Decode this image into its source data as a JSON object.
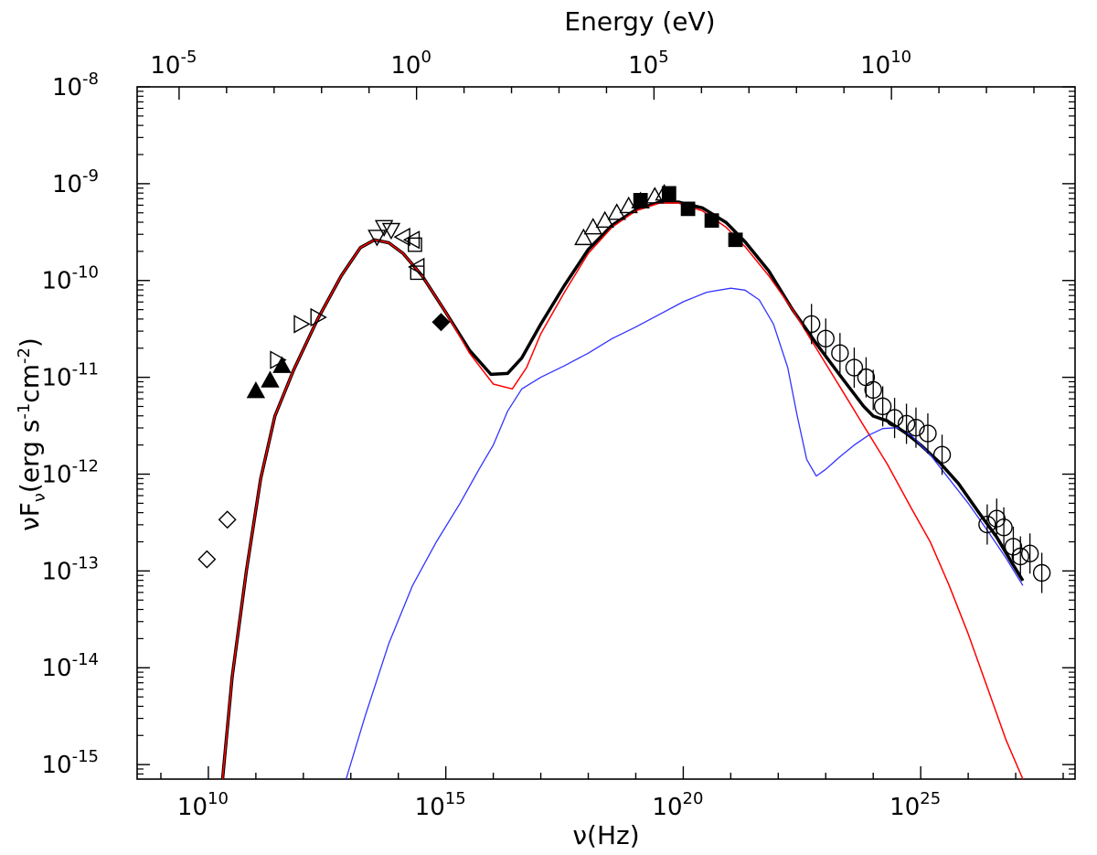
{
  "chart_data": {
    "type": "scatter",
    "xlabel": "ν(Hz)",
    "ylabel": "νF_ν(erg s^-1 cm^-2)",
    "top_xlabel": "Energy (eV)",
    "x_scale": "log",
    "y_scale": "log",
    "xlim_log10": [
      8.5,
      28.25
    ],
    "ylim_log10": [
      -15.15,
      -8
    ],
    "x_ticks": [
      {
        "base": "10",
        "exp": "10",
        "log10": 10
      },
      {
        "base": "10",
        "exp": "15",
        "log10": 15
      },
      {
        "base": "10",
        "exp": "20",
        "log10": 20
      },
      {
        "base": "10",
        "exp": "25",
        "log10": 25
      }
    ],
    "top_ticks": [
      {
        "base": "10",
        "exp": "-5",
        "log10_eV": -5
      },
      {
        "base": "10",
        "exp": "0",
        "log10_eV": 0
      },
      {
        "base": "10",
        "exp": "5",
        "log10_eV": 5
      },
      {
        "base": "10",
        "exp": "10",
        "log10_eV": 10
      }
    ],
    "y_ticks": [
      {
        "base": "10",
        "exp": "-8",
        "log10": -8
      },
      {
        "base": "10",
        "exp": "-9",
        "log10": -9
      },
      {
        "base": "10",
        "exp": "-10",
        "log10": -10
      },
      {
        "base": "10",
        "exp": "-11",
        "log10": -11
      },
      {
        "base": "10",
        "exp": "-12",
        "log10": -12
      },
      {
        "base": "10",
        "exp": "-13",
        "log10": -13
      },
      {
        "base": "10",
        "exp": "-14",
        "log10": -14
      },
      {
        "base": "10",
        "exp": "-15",
        "log10": -15
      }
    ],
    "grid": false,
    "series": [
      {
        "marker": "diamond-open",
        "points": [
          [
            9.97,
            -12.88
          ],
          [
            10.4,
            -12.47
          ]
        ]
      },
      {
        "marker": "triangle-up-filled",
        "points": [
          [
            11.0,
            -11.14
          ],
          [
            11.3,
            -11.03
          ],
          [
            11.55,
            -10.88
          ]
        ]
      },
      {
        "marker": "triangle-right-open",
        "points": [
          [
            11.45,
            -10.82
          ],
          [
            11.95,
            -10.45
          ],
          [
            12.3,
            -10.38
          ]
        ]
      },
      {
        "marker": "triangle-down-open",
        "points": [
          [
            13.55,
            -9.55
          ],
          [
            13.7,
            -9.45
          ],
          [
            13.85,
            -9.48
          ]
        ]
      },
      {
        "marker": "triangle-left-open",
        "points": [
          [
            14.1,
            -9.55
          ],
          [
            14.3,
            -9.58
          ],
          [
            14.4,
            -9.86
          ]
        ]
      },
      {
        "marker": "square-open",
        "points": [
          [
            14.35,
            -9.63
          ],
          [
            14.4,
            -9.92
          ]
        ]
      },
      {
        "marker": "diamond-filled",
        "points": [
          [
            14.9,
            -10.43
          ]
        ]
      },
      {
        "marker": "triangle-up-open",
        "points": [
          [
            17.9,
            -9.56
          ],
          [
            18.1,
            -9.45
          ],
          [
            18.35,
            -9.38
          ],
          [
            18.6,
            -9.3
          ],
          [
            18.85,
            -9.23
          ],
          [
            19.1,
            -9.18
          ],
          [
            19.4,
            -9.13
          ],
          [
            19.6,
            -9.1
          ]
        ]
      },
      {
        "marker": "square-filled",
        "points": [
          [
            19.1,
            -9.17
          ],
          [
            19.7,
            -9.1
          ],
          [
            20.1,
            -9.26
          ],
          [
            20.6,
            -9.38
          ],
          [
            21.1,
            -9.58
          ]
        ]
      },
      {
        "marker": "circle-open",
        "points": [
          [
            22.7,
            -10.45
          ],
          [
            23.0,
            -10.6
          ],
          [
            23.3,
            -10.75
          ],
          [
            23.6,
            -10.9
          ],
          [
            23.85,
            -11.0
          ],
          [
            24.0,
            -11.13
          ],
          [
            24.2,
            -11.3
          ],
          [
            24.45,
            -11.42
          ],
          [
            24.7,
            -11.48
          ],
          [
            24.9,
            -11.52
          ],
          [
            25.15,
            -11.58
          ],
          [
            25.45,
            -11.8
          ],
          [
            26.4,
            -12.52
          ],
          [
            26.6,
            -12.46
          ],
          [
            26.75,
            -12.55
          ],
          [
            26.95,
            -12.75
          ],
          [
            27.1,
            -12.85
          ],
          [
            27.3,
            -12.82
          ],
          [
            27.55,
            -13.02
          ]
        ]
      }
    ],
    "curves": [
      {
        "color": "#000000",
        "width": 3.5,
        "points": [
          [
            10.3,
            -15.15
          ],
          [
            10.5,
            -14.1
          ],
          [
            10.8,
            -13.0
          ],
          [
            11.1,
            -12.05
          ],
          [
            11.4,
            -11.4
          ],
          [
            11.8,
            -10.92
          ],
          [
            12.3,
            -10.4
          ],
          [
            12.8,
            -9.95
          ],
          [
            13.2,
            -9.66
          ],
          [
            13.5,
            -9.58
          ],
          [
            13.8,
            -9.61
          ],
          [
            14.1,
            -9.72
          ],
          [
            14.5,
            -9.95
          ],
          [
            15.0,
            -10.33
          ],
          [
            15.5,
            -10.72
          ],
          [
            15.95,
            -10.97
          ],
          [
            16.3,
            -10.96
          ],
          [
            16.6,
            -10.8
          ],
          [
            17.0,
            -10.45
          ],
          [
            17.5,
            -10.05
          ],
          [
            18.0,
            -9.68
          ],
          [
            18.5,
            -9.43
          ],
          [
            19.0,
            -9.27
          ],
          [
            19.5,
            -9.19
          ],
          [
            19.9,
            -9.19
          ],
          [
            20.4,
            -9.25
          ],
          [
            20.9,
            -9.4
          ],
          [
            21.3,
            -9.6
          ],
          [
            21.8,
            -9.9
          ],
          [
            22.3,
            -10.3
          ],
          [
            22.8,
            -10.65
          ],
          [
            23.3,
            -10.98
          ],
          [
            23.8,
            -11.3
          ],
          [
            24.0,
            -11.4
          ],
          [
            24.3,
            -11.45
          ],
          [
            24.7,
            -11.58
          ],
          [
            25.0,
            -11.7
          ],
          [
            25.4,
            -11.88
          ],
          [
            25.8,
            -12.1
          ],
          [
            26.2,
            -12.38
          ],
          [
            26.6,
            -12.65
          ],
          [
            26.9,
            -12.9
          ],
          [
            27.15,
            -13.1
          ]
        ]
      },
      {
        "color": "#ff0000",
        "width": 1.5,
        "points": [
          [
            10.3,
            -15.15
          ],
          [
            10.5,
            -14.1
          ],
          [
            10.8,
            -13.0
          ],
          [
            11.1,
            -12.05
          ],
          [
            11.4,
            -11.4
          ],
          [
            11.8,
            -10.92
          ],
          [
            12.3,
            -10.4
          ],
          [
            12.8,
            -9.95
          ],
          [
            13.2,
            -9.66
          ],
          [
            13.5,
            -9.58
          ],
          [
            13.8,
            -9.61
          ],
          [
            14.1,
            -9.72
          ],
          [
            14.5,
            -9.95
          ],
          [
            15.0,
            -10.33
          ],
          [
            15.5,
            -10.75
          ],
          [
            16.0,
            -11.07
          ],
          [
            16.4,
            -11.12
          ],
          [
            16.7,
            -10.9
          ],
          [
            17.0,
            -10.55
          ],
          [
            17.5,
            -10.12
          ],
          [
            18.0,
            -9.72
          ],
          [
            18.5,
            -9.45
          ],
          [
            19.0,
            -9.28
          ],
          [
            19.5,
            -9.2
          ],
          [
            19.9,
            -9.2
          ],
          [
            20.4,
            -9.28
          ],
          [
            20.9,
            -9.45
          ],
          [
            21.3,
            -9.65
          ],
          [
            21.8,
            -9.95
          ],
          [
            22.3,
            -10.3
          ],
          [
            22.8,
            -10.7
          ],
          [
            23.3,
            -11.1
          ],
          [
            23.8,
            -11.5
          ],
          [
            24.3,
            -11.9
          ],
          [
            24.8,
            -12.35
          ],
          [
            25.2,
            -12.7
          ],
          [
            25.6,
            -13.15
          ],
          [
            26.0,
            -13.65
          ],
          [
            26.4,
            -14.2
          ],
          [
            26.8,
            -14.75
          ],
          [
            27.15,
            -15.15
          ]
        ]
      },
      {
        "color": "#3333ff",
        "width": 1.3,
        "points": [
          [
            12.9,
            -15.15
          ],
          [
            13.3,
            -14.5
          ],
          [
            13.8,
            -13.75
          ],
          [
            14.3,
            -13.15
          ],
          [
            14.8,
            -12.7
          ],
          [
            15.3,
            -12.3
          ],
          [
            15.7,
            -11.95
          ],
          [
            16.0,
            -11.7
          ],
          [
            16.3,
            -11.35
          ],
          [
            16.6,
            -11.12
          ],
          [
            17.0,
            -11.0
          ],
          [
            17.5,
            -10.88
          ],
          [
            18.0,
            -10.75
          ],
          [
            18.5,
            -10.6
          ],
          [
            19.0,
            -10.48
          ],
          [
            19.5,
            -10.35
          ],
          [
            20.0,
            -10.22
          ],
          [
            20.5,
            -10.12
          ],
          [
            21.0,
            -10.08
          ],
          [
            21.3,
            -10.1
          ],
          [
            21.6,
            -10.2
          ],
          [
            21.9,
            -10.45
          ],
          [
            22.2,
            -10.9
          ],
          [
            22.4,
            -11.4
          ],
          [
            22.6,
            -11.85
          ],
          [
            22.8,
            -12.02
          ],
          [
            23.0,
            -11.95
          ],
          [
            23.3,
            -11.82
          ],
          [
            23.6,
            -11.7
          ],
          [
            23.9,
            -11.6
          ],
          [
            24.2,
            -11.53
          ],
          [
            24.5,
            -11.52
          ],
          [
            24.8,
            -11.6
          ],
          [
            25.2,
            -11.8
          ],
          [
            25.6,
            -12.05
          ],
          [
            26.0,
            -12.3
          ],
          [
            26.4,
            -12.58
          ],
          [
            26.8,
            -12.87
          ],
          [
            27.15,
            -13.15
          ]
        ]
      }
    ]
  }
}
